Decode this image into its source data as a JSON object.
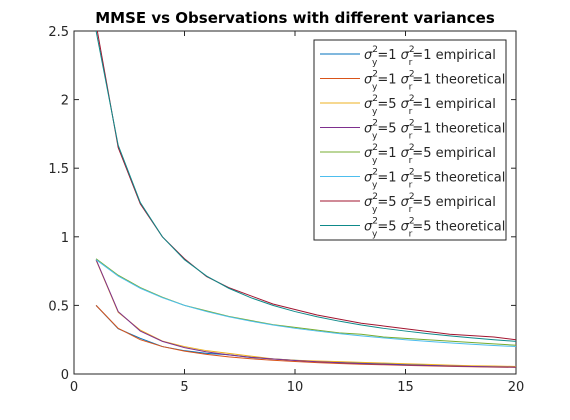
{
  "chart_data": {
    "type": "line",
    "title": "MMSE vs Observations with different variances",
    "xlabel": "",
    "ylabel": "",
    "xlim": [
      0,
      20
    ],
    "ylim": [
      0,
      2.5
    ],
    "xticks": [
      0,
      5,
      10,
      15,
      20
    ],
    "yticks": [
      0,
      0.5,
      1,
      1.5,
      2,
      2.5
    ],
    "xtick_labels": [
      "0",
      "5",
      "10",
      "15",
      "20"
    ],
    "ytick_labels": [
      "0",
      "0.5",
      "1",
      "1.5",
      "2",
      "2.5"
    ],
    "grid": false,
    "legend_position": "top-right",
    "x": [
      1,
      2,
      3,
      4,
      5,
      6,
      7,
      8,
      9,
      10,
      11,
      12,
      13,
      14,
      15,
      16,
      17,
      18,
      19,
      20
    ],
    "series": [
      {
        "name": "1 empirical",
        "sy": "1",
        "sr": "1",
        "suffix": "empirical",
        "color": "#0072bd",
        "values": [
          0.5,
          0.33,
          0.26,
          0.2,
          0.17,
          0.15,
          0.14,
          0.12,
          0.11,
          0.1,
          0.09,
          0.085,
          0.08,
          0.075,
          0.07,
          0.065,
          0.06,
          0.058,
          0.055,
          0.05
        ]
      },
      {
        "name": "1 theoretical",
        "sy": "1",
        "sr": "1",
        "suffix": "theoretical",
        "color": "#d95319",
        "values": [
          0.5,
          0.333,
          0.25,
          0.2,
          0.167,
          0.143,
          0.125,
          0.111,
          0.1,
          0.091,
          0.083,
          0.077,
          0.071,
          0.067,
          0.0625,
          0.059,
          0.056,
          0.053,
          0.05,
          0.048
        ]
      },
      {
        "name": "1 empirical",
        "sy": "5",
        "sr": "1",
        "suffix": "empirical",
        "color": "#edb120",
        "values": [
          0.83,
          0.45,
          0.32,
          0.24,
          0.2,
          0.17,
          0.15,
          0.13,
          0.11,
          0.1,
          0.095,
          0.09,
          0.085,
          0.08,
          0.075,
          0.07,
          0.065,
          0.06,
          0.058,
          0.055
        ]
      },
      {
        "name": "1 theoretical",
        "sy": "5",
        "sr": "1",
        "suffix": "theoretical",
        "color": "#7e2f8e",
        "values": [
          0.833,
          0.455,
          0.313,
          0.238,
          0.192,
          0.161,
          0.139,
          0.122,
          0.109,
          0.098,
          0.089,
          0.082,
          0.076,
          0.071,
          0.066,
          0.062,
          0.058,
          0.055,
          0.052,
          0.05
        ]
      },
      {
        "name": "5 empirical",
        "sy": "1",
        "sr": "5",
        "suffix": "empirical",
        "color": "#77ac30",
        "values": [
          0.84,
          0.72,
          0.63,
          0.56,
          0.5,
          0.46,
          0.42,
          0.39,
          0.36,
          0.34,
          0.32,
          0.3,
          0.29,
          0.27,
          0.26,
          0.25,
          0.24,
          0.23,
          0.22,
          0.21
        ]
      },
      {
        "name": "5 theoretical",
        "sy": "1",
        "sr": "5",
        "suffix": "theoretical",
        "color": "#4dbeee",
        "values": [
          0.833,
          0.714,
          0.625,
          0.556,
          0.5,
          0.455,
          0.417,
          0.385,
          0.357,
          0.333,
          0.313,
          0.294,
          0.278,
          0.263,
          0.25,
          0.238,
          0.227,
          0.217,
          0.208,
          0.2
        ]
      },
      {
        "name": "5 empirical",
        "sy": "5",
        "sr": "5",
        "suffix": "empirical",
        "color": "#a2142f",
        "values": [
          2.55,
          1.65,
          1.24,
          1.0,
          0.84,
          0.71,
          0.63,
          0.57,
          0.51,
          0.47,
          0.43,
          0.4,
          0.37,
          0.35,
          0.33,
          0.31,
          0.29,
          0.28,
          0.27,
          0.25
        ]
      },
      {
        "name": "5 theoretical",
        "sy": "5",
        "sr": "5",
        "suffix": "theoretical",
        "color": "#0e8a8a",
        "values": [
          2.5,
          1.667,
          1.25,
          1.0,
          0.833,
          0.714,
          0.625,
          0.556,
          0.5,
          0.455,
          0.417,
          0.385,
          0.357,
          0.333,
          0.313,
          0.294,
          0.278,
          0.263,
          0.25,
          0.238
        ]
      }
    ]
  }
}
